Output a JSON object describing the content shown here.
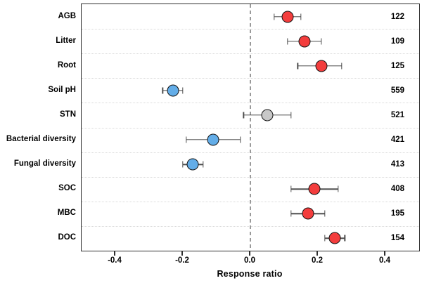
{
  "chart_data": {
    "type": "scatter",
    "subtype": "horizontal-forest-plot",
    "title": "",
    "xlabel": "Response ratio",
    "ylabel": "",
    "xlim": [
      -0.5,
      0.5
    ],
    "x_ticks": [
      -0.4,
      -0.2,
      0.0,
      0.2,
      0.4
    ],
    "x_tick_labels": [
      "-0.4",
      "-0.2",
      "0.0",
      "0.2",
      "0.4"
    ],
    "zero_reference_line": 0.0,
    "grid": "dotted horizontal separators between categories",
    "legend": "none",
    "colors": {
      "increase": "#f33d3d",
      "decrease": "#63ade8",
      "neutral": "#c8c8c8",
      "point_outline": "#141414",
      "error_bar": "#4d4d4d",
      "zero_line": "#9a9a9a",
      "separator": "#d9d9d9"
    },
    "rows": [
      {
        "label": "AGB",
        "mean": 0.11,
        "ci": [
          0.07,
          0.15
        ],
        "n": 122,
        "color": "increase"
      },
      {
        "label": "Litter",
        "mean": 0.16,
        "ci": [
          0.11,
          0.21
        ],
        "n": 109,
        "color": "increase"
      },
      {
        "label": "Root",
        "mean": 0.21,
        "ci": [
          0.14,
          0.27
        ],
        "n": 125,
        "color": "increase"
      },
      {
        "label": "Soil pH",
        "mean": -0.23,
        "ci": [
          -0.26,
          -0.2
        ],
        "n": 559,
        "color": "decrease"
      },
      {
        "label": "STN",
        "mean": 0.05,
        "ci": [
          -0.02,
          0.12
        ],
        "n": 521,
        "color": "neutral"
      },
      {
        "label": "Bacterial diversity",
        "mean": -0.11,
        "ci": [
          -0.19,
          -0.03
        ],
        "n": 421,
        "color": "decrease"
      },
      {
        "label": "Fungal diversity",
        "mean": -0.17,
        "ci": [
          -0.2,
          -0.14
        ],
        "n": 413,
        "color": "decrease"
      },
      {
        "label": "SOC",
        "mean": 0.19,
        "ci": [
          0.12,
          0.26
        ],
        "n": 408,
        "color": "increase"
      },
      {
        "label": "MBC",
        "mean": 0.17,
        "ci": [
          0.12,
          0.22
        ],
        "n": 195,
        "color": "increase"
      },
      {
        "label": "DOC",
        "mean": 0.25,
        "ci": [
          0.22,
          0.28
        ],
        "n": 154,
        "color": "increase"
      }
    ]
  }
}
